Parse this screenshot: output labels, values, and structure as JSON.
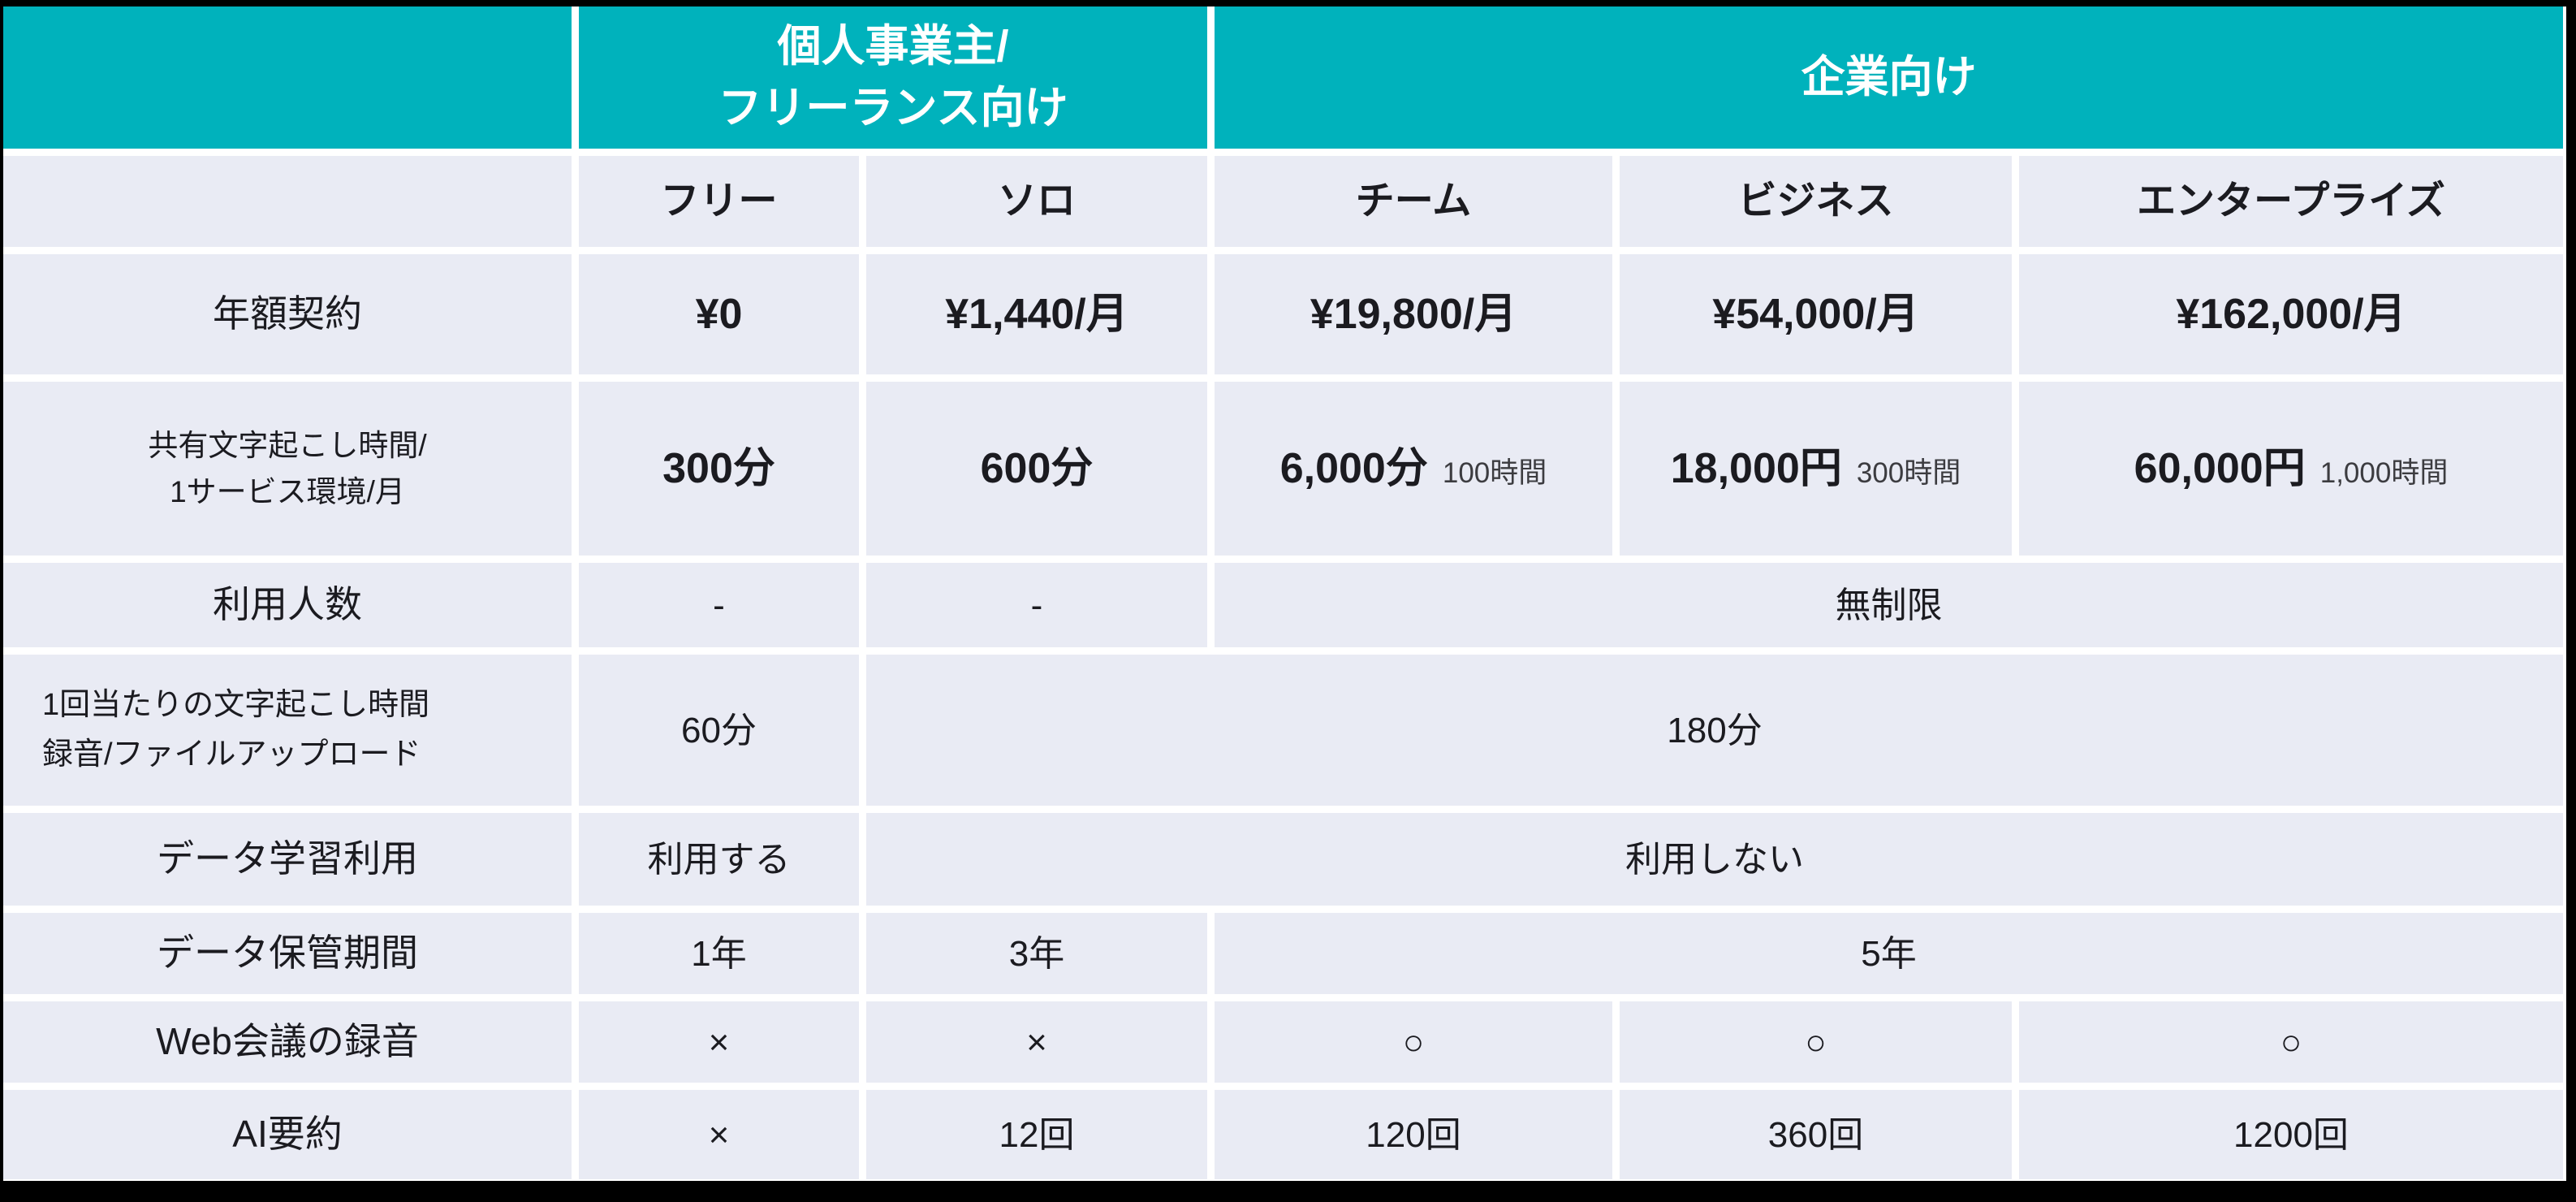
{
  "colors": {
    "header_teal": "#00B2BC",
    "cell_bg": "#E9EBF4",
    "gap_white": "#FFFFFF",
    "frame_black": "#000000",
    "text_dark": "#1B1B20",
    "text_sub": "#3C3C40",
    "header_text": "#FFFFFF"
  },
  "header": {
    "group_personal_line1": "個人事業主/",
    "group_personal_line2": "フリーランス向け",
    "group_enterprise": "企業向け"
  },
  "plans": {
    "free": "フリー",
    "solo": "ソロ",
    "team": "チーム",
    "business": "ビジネス",
    "enterprise": "エンタープライズ"
  },
  "rows": {
    "annual": {
      "label": "年額契約",
      "free": "¥0",
      "solo": "¥1,440/月",
      "team": "¥19,800/月",
      "business": "¥54,000/月",
      "enterprise": "¥162,000/月"
    },
    "shared_time": {
      "label_line1": "共有文字起こし時間/",
      "label_line2": "1サービス環境/月",
      "free": "300分",
      "solo": "600分",
      "team_main": "6,000分",
      "team_sub": "100時間",
      "business_main": "18,000円",
      "business_sub": "300時間",
      "enterprise_main": "60,000円",
      "enterprise_sub": "1,000時間"
    },
    "users": {
      "label": "利用人数",
      "free": "-",
      "solo": "-",
      "merged": "無制限"
    },
    "per_session": {
      "label_line1": "1回当たりの文字起こし時間",
      "label_line2": "録音/ファイルアップロード",
      "free": "60分",
      "merged": "180分"
    },
    "data_learning": {
      "label": "データ学習利用",
      "free": "利用する",
      "merged": "利用しない"
    },
    "retention": {
      "label": "データ保管期間",
      "free": "1年",
      "solo": "3年",
      "merged": "5年"
    },
    "web_meeting": {
      "label": "Web会議の録音",
      "free": "×",
      "solo": "×",
      "team": "○",
      "business": "○",
      "enterprise": "○"
    },
    "ai_summary": {
      "label": "AI要約",
      "free": "×",
      "solo": "12回",
      "team": "120回",
      "business": "360回",
      "enterprise": "1200回"
    }
  }
}
